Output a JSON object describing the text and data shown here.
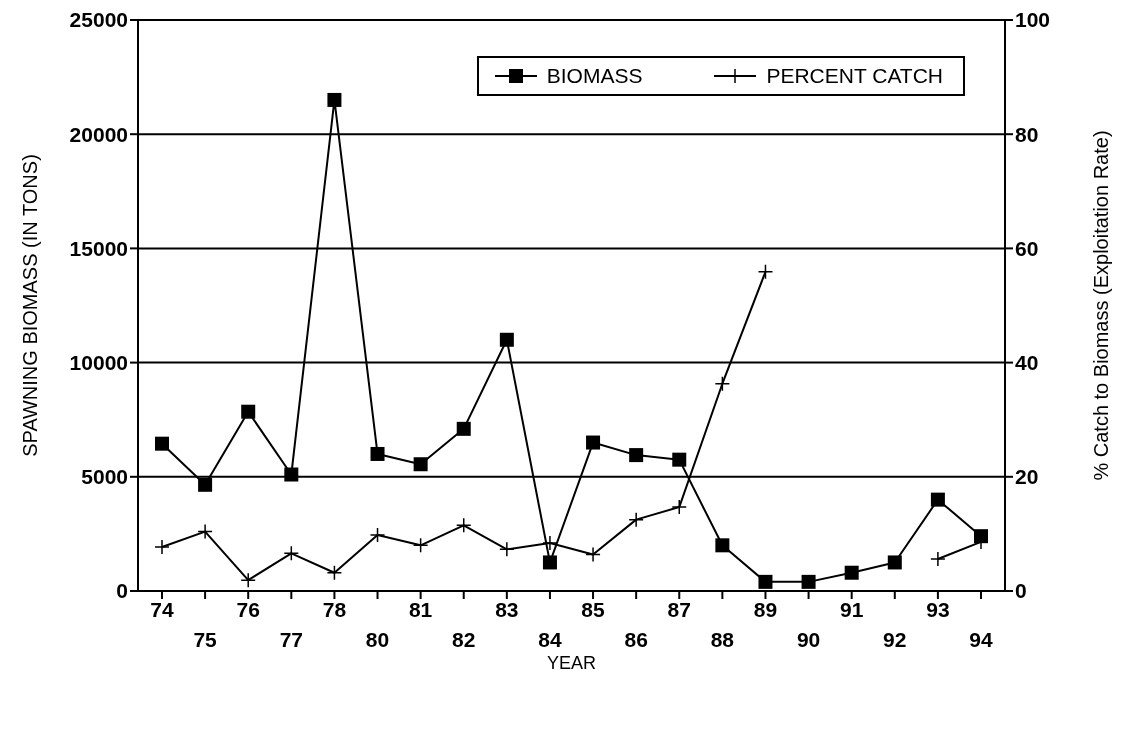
{
  "chart_data": {
    "type": "line",
    "xlabel": "YEAR",
    "ylabel": "SPAWNING BIOMASS (IN TONS)",
    "y2label": "% Catch to Biomass (Exploitation Rate)",
    "categories": [
      "74",
      "75",
      "76",
      "77",
      "78",
      "80",
      "81",
      "82",
      "83",
      "84",
      "85",
      "86",
      "87",
      "88",
      "89",
      "90",
      "91",
      "92",
      "93",
      "94"
    ],
    "series": [
      {
        "name": "BIOMASS",
        "color": "#000000",
        "marker": "square",
        "values": [
          6450,
          4650,
          7850,
          5100,
          21500,
          6000,
          5550,
          7100,
          11000,
          1250,
          6500,
          5950,
          5750,
          2000,
          400,
          400,
          800,
          1250,
          4000,
          2400
        ]
      },
      {
        "name": "PERCENT CATCH",
        "color": "#000000",
        "marker": "cross",
        "axis": "y2",
        "values": [
          7.7,
          10.4,
          1.9,
          6.6,
          3.2,
          9.8,
          8.0,
          11.5,
          7.3,
          8.4,
          6.4,
          12.5,
          14.7,
          36.3,
          55.9,
          null,
          null,
          null,
          5.6,
          8.6
        ]
      }
    ],
    "ylim": [
      0,
      25000
    ],
    "yticks": [
      0,
      5000,
      10000,
      15000,
      20000,
      25000
    ],
    "y2lim": [
      0,
      100
    ],
    "y2ticks": [
      0,
      20,
      40,
      60,
      80,
      100
    ],
    "grid": "y",
    "legend": "top right",
    "line_style": "solid"
  }
}
